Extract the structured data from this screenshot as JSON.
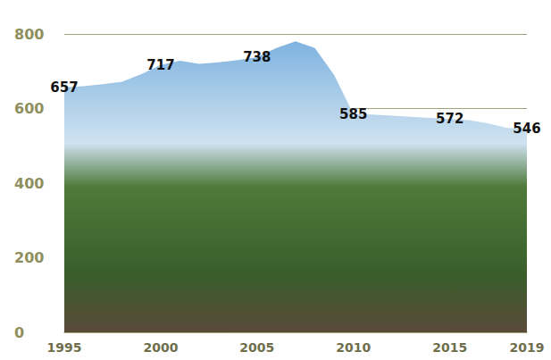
{
  "chart_data": {
    "type": "area",
    "categories": [
      "1995",
      null,
      null,
      null,
      null,
      "2000",
      null,
      null,
      null,
      null,
      "2005",
      null,
      null,
      null,
      null,
      "2010",
      null,
      null,
      null,
      null,
      "2015",
      null,
      null,
      null,
      "2019"
    ],
    "values": [
      657,
      660,
      665,
      672,
      692,
      717,
      728,
      720,
      724,
      730,
      738,
      762,
      780,
      762,
      690,
      585,
      584,
      581,
      578,
      575,
      572,
      569,
      560,
      548,
      546
    ],
    "value_labels": [
      "657",
      null,
      null,
      null,
      null,
      "717",
      null,
      null,
      null,
      null,
      "738",
      null,
      null,
      null,
      null,
      "585",
      null,
      null,
      null,
      null,
      "572",
      null,
      null,
      null,
      "546"
    ],
    "color": "#7fb3e0",
    "ylim": [
      0,
      800
    ],
    "yticks": [
      0,
      200,
      400,
      600,
      800
    ],
    "grid": true
  }
}
